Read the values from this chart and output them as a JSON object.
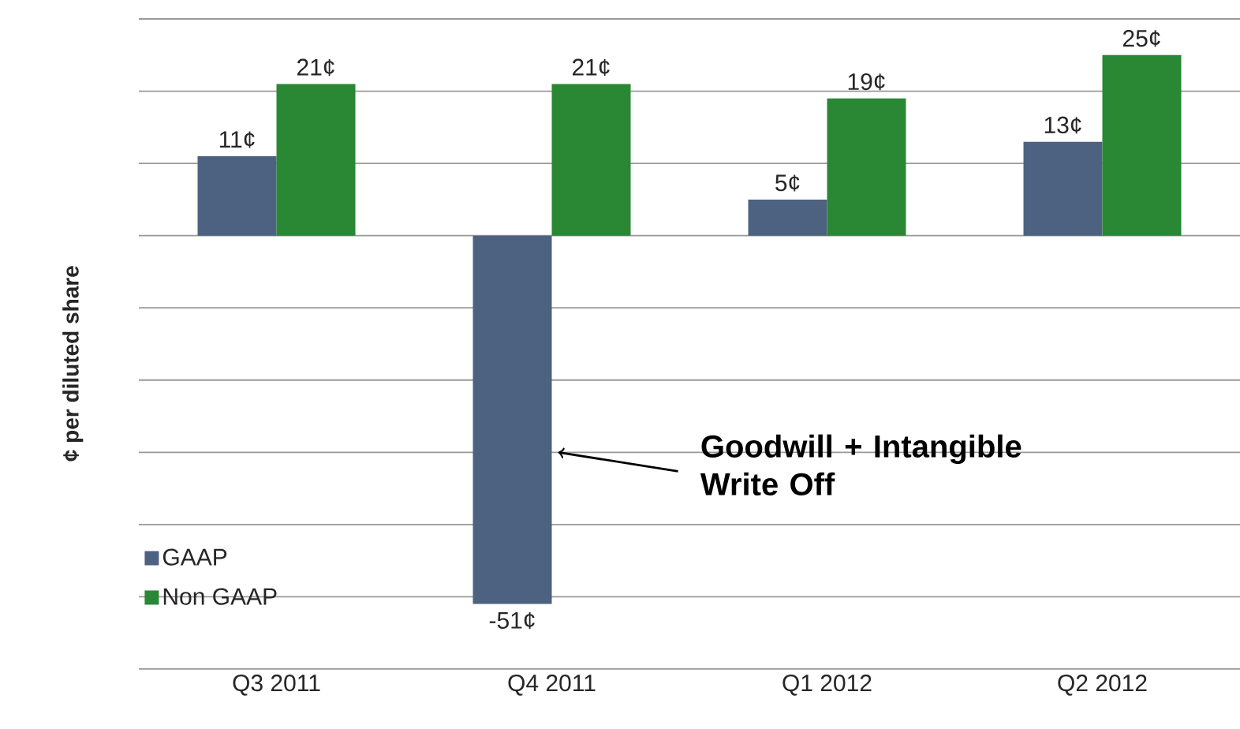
{
  "chart_data": {
    "type": "bar",
    "ylabel": "¢ per diluted share",
    "categories": [
      "Q3 2011",
      "Q4 2011",
      "Q1 2012",
      "Q2 2012"
    ],
    "series": [
      {
        "name": "GAAP",
        "color": "#4d6280",
        "values": [
          11,
          -51,
          5,
          13
        ],
        "value_labels": [
          "11¢",
          "-51¢",
          "5¢",
          "13¢"
        ]
      },
      {
        "name": "Non GAAP",
        "color": "#2a8734",
        "values": [
          21,
          21,
          19,
          25
        ],
        "value_labels": [
          "21¢",
          "21¢",
          "19¢",
          "25¢"
        ]
      }
    ],
    "ylim": [
      -60,
      30
    ],
    "yticks": [
      {
        "value": -60,
        "label": null
      },
      {
        "value": -50,
        "label": null
      },
      {
        "value": -40,
        "label": null
      },
      {
        "value": -30,
        "label": null
      },
      {
        "value": -20,
        "label": null
      },
      {
        "value": -10,
        "label": null
      },
      {
        "value": 0,
        "label": null
      },
      {
        "value": 10,
        "label": null
      },
      {
        "value": 20,
        "label": null
      },
      {
        "value": 30,
        "label": null
      }
    ],
    "grid": "y",
    "legend": "bottom left",
    "tick_labels": "x",
    "annotations": [
      {
        "text": "Goodwill + Intangible Write Off",
        "x": "Q4 2011",
        "y": -30
      }
    ]
  }
}
